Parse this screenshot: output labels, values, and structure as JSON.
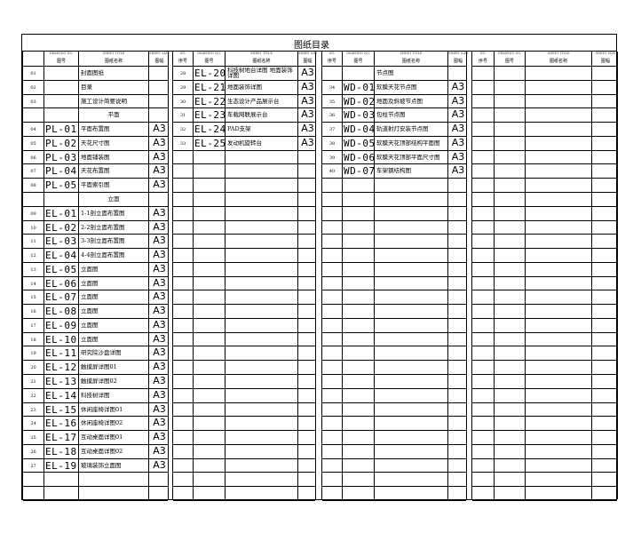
{
  "title": "图纸目录",
  "header": {
    "no_en": "NO.",
    "no_cn": "序号",
    "drawing_en": "DRAWING NO.",
    "drawing_cn": "图号",
    "title_en": "SHEET TITLE",
    "title_cn": "图纸名称",
    "size_en": "SHEET SIZE",
    "size_cn": "图幅"
  },
  "panels": [
    {
      "show_no_header": false,
      "rows": [
        {
          "no": "01",
          "drawing": "",
          "title": "封面图纸",
          "size": ""
        },
        {
          "no": "02",
          "drawing": "",
          "title": "目录",
          "size": ""
        },
        {
          "no": "03",
          "drawing": "",
          "title": "施工设计简要说明",
          "size": ""
        },
        {
          "no": "",
          "drawing": "",
          "title": "平面",
          "size": "",
          "section": true
        },
        {
          "no": "04",
          "drawing": "PL-01",
          "title": "平面布置图",
          "size": "A3"
        },
        {
          "no": "05",
          "drawing": "PL-02",
          "title": "天花尺寸图",
          "size": "A3"
        },
        {
          "no": "06",
          "drawing": "PL-03",
          "title": "地面铺装图",
          "size": "A3"
        },
        {
          "no": "07",
          "drawing": "PL-04",
          "title": "天花布置图",
          "size": "A3"
        },
        {
          "no": "08",
          "drawing": "PL-05",
          "title": "平面索引图",
          "size": "A3"
        },
        {
          "no": "",
          "drawing": "",
          "title": "立面",
          "size": "",
          "section": true
        },
        {
          "no": "09",
          "drawing": "EL-01",
          "title": "1-1剖立面布置图",
          "size": "A3"
        },
        {
          "no": "10",
          "drawing": "EL-02",
          "title": "2-2剖立面布置图",
          "size": "A3"
        },
        {
          "no": "11",
          "drawing": "EL-03",
          "title": "3-3剖立面布置图",
          "size": "A3"
        },
        {
          "no": "12",
          "drawing": "EL-04",
          "title": "4-4剖立面布置图",
          "size": "A3"
        },
        {
          "no": "13",
          "drawing": "EL-05",
          "title": "立面图",
          "size": "A3"
        },
        {
          "no": "14",
          "drawing": "EL-06",
          "title": "立面图",
          "size": "A3"
        },
        {
          "no": "15",
          "drawing": "EL-07",
          "title": "立面图",
          "size": "A3"
        },
        {
          "no": "16",
          "drawing": "EL-08",
          "title": "立面图",
          "size": "A3"
        },
        {
          "no": "17",
          "drawing": "EL-09",
          "title": "立面图",
          "size": "A3"
        },
        {
          "no": "18",
          "drawing": "EL-10",
          "title": "立面图",
          "size": "A3"
        },
        {
          "no": "19",
          "drawing": "EL-11",
          "title": "研究院沙盘详图",
          "size": "A3"
        },
        {
          "no": "20",
          "drawing": "EL-12",
          "title": "触摸屏详图01",
          "size": "A3"
        },
        {
          "no": "21",
          "drawing": "EL-13",
          "title": "触摸屏详图02",
          "size": "A3"
        },
        {
          "no": "22",
          "drawing": "EL-14",
          "title": "科技树详图",
          "size": "A3"
        },
        {
          "no": "23",
          "drawing": "EL-15",
          "title": "休闲座椅详图01",
          "size": "A3"
        },
        {
          "no": "24",
          "drawing": "EL-16",
          "title": "休闲座椅详图02",
          "size": "A3"
        },
        {
          "no": "25",
          "drawing": "EL-17",
          "title": "互动桌面详图01",
          "size": "A3"
        },
        {
          "no": "26",
          "drawing": "EL-18",
          "title": "互动桌面详图02",
          "size": "A3"
        },
        {
          "no": "27",
          "drawing": "EL-19",
          "title": "玻璃装饰立面图",
          "size": "A3"
        }
      ]
    },
    {
      "show_no_header": true,
      "rows": [
        {
          "no": "28",
          "drawing": "EL-20",
          "title": "科技树地台详图 地面装饰详图",
          "size": "A3",
          "two_line": true
        },
        {
          "no": "29",
          "drawing": "EL-21",
          "title": "地面装饰详图",
          "size": "A3"
        },
        {
          "no": "30",
          "drawing": "EL-22",
          "title": "生态设计产品展示台",
          "size": "A3"
        },
        {
          "no": "31",
          "drawing": "EL-23",
          "title": "车载网联展示台",
          "size": "A3"
        },
        {
          "no": "32",
          "drawing": "EL-24",
          "title": "PAD支架",
          "size": "A3"
        },
        {
          "no": "33",
          "drawing": "EL-25",
          "title": "发动机旋转台",
          "size": "A3"
        }
      ]
    },
    {
      "show_no_header": true,
      "rows": [
        {
          "no": "",
          "drawing": "",
          "title": "节点图",
          "size": ""
        },
        {
          "no": "34",
          "drawing": "WD-01",
          "title": "软膜天花节点图",
          "size": "A3"
        },
        {
          "no": "35",
          "drawing": "WD-02",
          "title": "地面及斜坡节点图",
          "size": "A3"
        },
        {
          "no": "36",
          "drawing": "WD-03",
          "title": "包柱节点图",
          "size": "A3"
        },
        {
          "no": "37",
          "drawing": "WD-04",
          "title": "轨道射灯安装节点图",
          "size": "A3"
        },
        {
          "no": "38",
          "drawing": "WD-05",
          "title": "软膜天花顶部结构平面图",
          "size": "A3"
        },
        {
          "no": "39",
          "drawing": "WD-06",
          "title": "软膜天花顶部平面尺寸图",
          "size": "A3"
        },
        {
          "no": "40",
          "drawing": "WD-07",
          "title": "车架钢结构图",
          "size": "A3"
        }
      ]
    },
    {
      "show_no_header": true,
      "rows": []
    }
  ]
}
